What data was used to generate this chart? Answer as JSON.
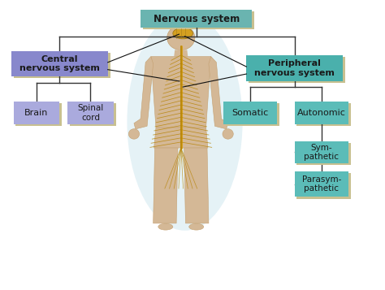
{
  "bg_color": "#ffffff",
  "title": "Nervous system",
  "title_box_color": "#6ab4b0",
  "title_text_color": "#1a1a1a",
  "cns_label": "Central\nnervous system",
  "cns_box_color": "#8888cc",
  "cns_text_color": "#1a1a1a",
  "pns_label": "Peripheral\nnervous system",
  "pns_box_color": "#4ab0ac",
  "pns_text_color": "#1a1a1a",
  "brain_label": "Brain",
  "brain_box_color": "#aaaadd",
  "spinal_label": "Spinal\ncord",
  "spinal_box_color": "#aaaadd",
  "somatic_label": "Somatic",
  "somatic_box_color": "#5bbcb8",
  "autonomic_label": "Autonomic",
  "autonomic_box_color": "#5bbcb8",
  "sympathetic_label": "Sym-\npathetic",
  "sympathetic_box_color": "#5bbcb8",
  "parasympathetic_label": "Parasym-\npathetic",
  "parasympathetic_box_color": "#5bbcb8",
  "line_color": "#333333",
  "annotation_line_color": "#111111",
  "body_skin": "#d4b896",
  "body_skin_dark": "#c4a070",
  "body_nerve_color": "#b8860b",
  "body_nerve_light": "#d4a020",
  "body_glow_color": "#d0e8f0",
  "body_brain_color": "#d4a020",
  "shadow_color": "#c8c090"
}
